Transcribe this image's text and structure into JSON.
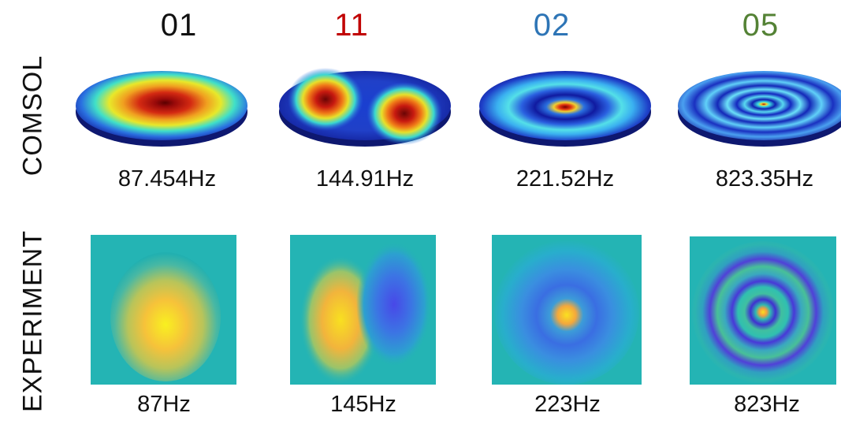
{
  "colors": {
    "mode_01": "#111111",
    "mode_11": "#c00000",
    "mode_02": "#2e75b6",
    "mode_05": "#548235"
  },
  "rows": {
    "simulation_label": "COMSOL",
    "experiment_label": "EXPERIMENT"
  },
  "modes": [
    {
      "label": "01",
      "color": "#111111",
      "simulated_freq": "87.454Hz",
      "measured_freq": "87Hz"
    },
    {
      "label": "11",
      "color": "#c00000",
      "simulated_freq": "144.91Hz",
      "measured_freq": "145Hz"
    },
    {
      "label": "02",
      "color": "#2e75b6",
      "simulated_freq": "221.52Hz",
      "measured_freq": "223Hz"
    },
    {
      "label": "05",
      "color": "#548235",
      "simulated_freq": "823.35Hz",
      "measured_freq": "823Hz"
    }
  ]
}
